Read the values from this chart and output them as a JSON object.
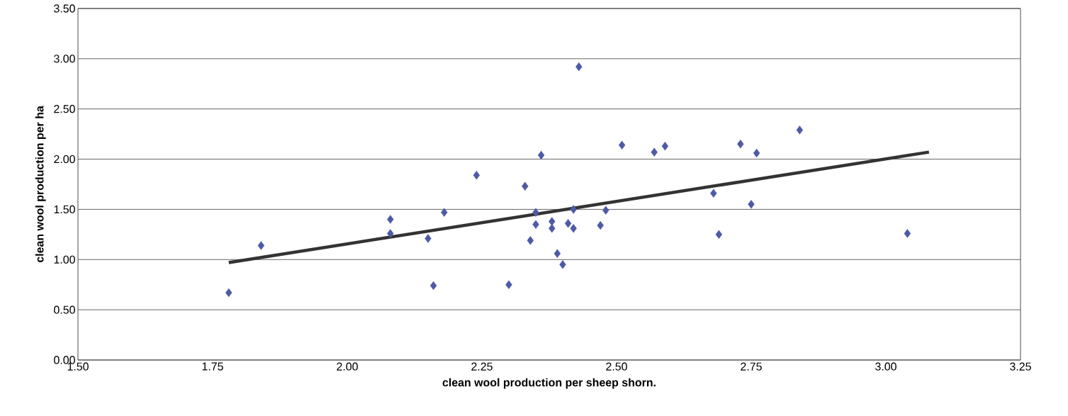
{
  "chart_data": {
    "type": "scatter",
    "xlabel": "clean wool production per sheep shorn.",
    "ylabel": "clean wool production per ha",
    "xlim": [
      1.5,
      3.25
    ],
    "ylim": [
      0,
      3.5
    ],
    "xticks": [
      {
        "value": 1.5,
        "label": "1.50"
      },
      {
        "value": 1.75,
        "label": "1.75"
      },
      {
        "value": 2.0,
        "label": "2.00"
      },
      {
        "value": 2.25,
        "label": "2.25"
      },
      {
        "value": 2.5,
        "label": "2.50"
      },
      {
        "value": 2.75,
        "label": "2.75"
      },
      {
        "value": 3.0,
        "label": "3.00"
      },
      {
        "value": 3.25,
        "label": "3.25"
      }
    ],
    "yticks": [
      {
        "value": 0,
        "label": "0.00"
      },
      {
        "value": 0.5,
        "label": "0.50"
      },
      {
        "value": 1.0,
        "label": "1.00"
      },
      {
        "value": 1.5,
        "label": "1.50"
      },
      {
        "value": 2.0,
        "label": "2.00"
      },
      {
        "value": 2.5,
        "label": "2.50"
      },
      {
        "value": 3.0,
        "label": "3.00"
      },
      {
        "value": 3.5,
        "label": "3.50"
      }
    ],
    "grid": "y",
    "series": [
      {
        "marker": "diamond",
        "color": "#4e5aa6",
        "x": [
          1.78,
          1.84,
          2.08,
          2.08,
          2.15,
          2.18,
          2.16,
          2.24,
          2.3,
          2.33,
          2.34,
          2.35,
          2.35,
          2.36,
          2.38,
          2.38,
          2.39,
          2.4,
          2.41,
          2.42,
          2.42,
          2.43,
          2.47,
          2.48,
          2.51,
          2.57,
          2.59,
          2.68,
          2.69,
          2.73,
          2.75,
          2.76,
          2.84,
          3.04
        ],
        "values": [
          0.67,
          1.14,
          1.4,
          1.26,
          1.21,
          1.47,
          0.74,
          1.84,
          0.75,
          1.73,
          1.19,
          1.47,
          1.35,
          2.04,
          1.31,
          1.38,
          1.06,
          0.95,
          1.36,
          1.31,
          1.5,
          2.92,
          1.34,
          1.49,
          2.14,
          2.07,
          2.13,
          1.66,
          1.25,
          2.15,
          1.55,
          2.06,
          2.29,
          1.26
        ]
      },
      {
        "type": "line",
        "marker": "none",
        "color": "#333333",
        "x": [
          1.78,
          3.08
        ],
        "values": [
          0.97,
          2.07
        ]
      }
    ]
  }
}
